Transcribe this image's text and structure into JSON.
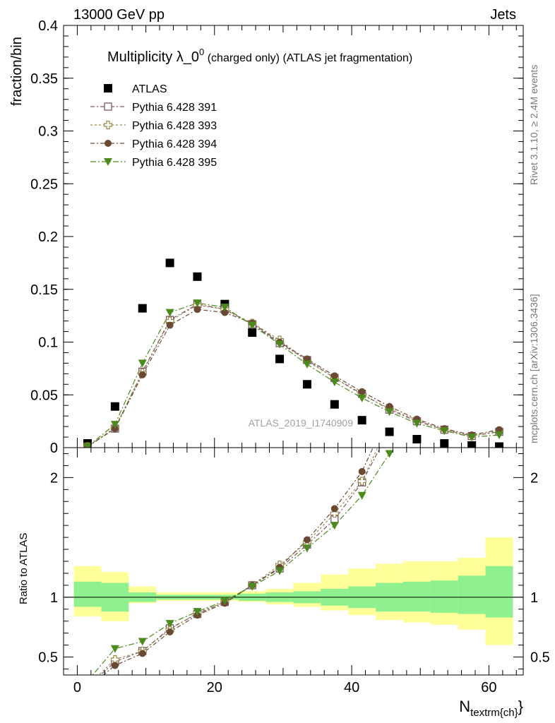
{
  "header": {
    "left": "13000 GeV pp",
    "right": "Jets"
  },
  "side_labels": {
    "rivet": "Rivet 3.1.10, ≥ 2.4M events",
    "mcplots": "mcplots.cern.ch [arXiv:1306.3436]"
  },
  "analysis_id": "ATLAS_2019_I1740909",
  "chart_data": [
    {
      "type": "line",
      "title": "Multiplicity λ_0",
      "title_sup": "0",
      "title_suffix": " (charged only) (ATLAS jet fragmentation)",
      "ylabel": "fraction/bin",
      "ylim": [
        0,
        0.4
      ],
      "yticks": [
        0,
        0.05,
        0.1,
        0.15,
        0.2,
        0.25,
        0.3,
        0.35,
        0.4
      ],
      "ytick_labels": [
        "0",
        "0.05",
        "0.1",
        "0.15",
        "0.2",
        "0.25",
        "0.3",
        "0.35",
        "0.4"
      ],
      "xlim": [
        -2,
        65
      ],
      "x": [
        1.5,
        5.5,
        9.5,
        13.5,
        17.5,
        21.5,
        25.5,
        29.5,
        33.5,
        37.5,
        41.5,
        45.5,
        49.5,
        53.5,
        57.5,
        61.5
      ],
      "series": [
        {
          "name": "ATLAS",
          "marker": "square-filled",
          "color": "#000000",
          "values": [
            0.004,
            0.039,
            0.132,
            0.175,
            0.162,
            0.136,
            0.109,
            0.084,
            0.06,
            0.041,
            0.026,
            0.015,
            0.008,
            0.004,
            0.002,
            0.001
          ]
        },
        {
          "name": "Pythia 6.428 391",
          "marker": "square-open",
          "color": "#7a5468",
          "dash": "6,3,2,3",
          "values": [
            0.001,
            0.018,
            0.072,
            0.121,
            0.136,
            0.131,
            0.117,
            0.099,
            0.083,
            0.066,
            0.051,
            0.036,
            0.025,
            0.017,
            0.011,
            0.015
          ]
        },
        {
          "name": "Pythia 6.428 393",
          "marker": "cross-open",
          "color": "#9a8a4a",
          "dash": "3,3",
          "values": [
            0.001,
            0.019,
            0.071,
            0.12,
            0.135,
            0.131,
            0.118,
            0.102,
            0.082,
            0.066,
            0.05,
            0.037,
            0.026,
            0.017,
            0.011,
            0.016
          ]
        },
        {
          "name": "Pythia 6.428 394",
          "marker": "circle-filled",
          "color": "#6b4a34",
          "dash": "6,3,2,3",
          "values": [
            0.001,
            0.018,
            0.069,
            0.116,
            0.131,
            0.128,
            0.118,
            0.1,
            0.084,
            0.068,
            0.053,
            0.039,
            0.027,
            0.018,
            0.012,
            0.017
          ]
        },
        {
          "name": "Pythia 6.428 395",
          "marker": "triangle-down-filled",
          "color": "#4c8a1e",
          "dash": "8,3,2,3",
          "values": [
            0.001,
            0.022,
            0.08,
            0.128,
            0.137,
            0.133,
            0.116,
            0.098,
            0.079,
            0.062,
            0.047,
            0.034,
            0.023,
            0.016,
            0.01,
            0.012
          ]
        }
      ]
    },
    {
      "type": "line",
      "ylabel": "Ratio to ATLAS",
      "xlabel": "N",
      "xlabel_sub": "textrm{ch}",
      "xlabel_end": "}",
      "ylim": [
        0.35,
        2.25
      ],
      "yticks": [
        0.5,
        1,
        2
      ],
      "ytick_labels": [
        "0.5",
        "1",
        "2"
      ],
      "xlim": [
        -2,
        65
      ],
      "xticks": [
        0,
        20,
        40,
        60
      ],
      "xtick_labels": [
        "0",
        "20",
        "40",
        "60"
      ],
      "x_edges": [
        -0.5,
        3.5,
        7.5,
        11.5,
        15.5,
        19.5,
        23.5,
        27.5,
        31.5,
        35.5,
        39.5,
        43.5,
        47.5,
        51.5,
        55.5,
        59.5,
        63.5
      ],
      "band_inner": {
        "color": "#8ff08f",
        "lo": [
          0.92,
          0.88,
          0.96,
          0.98,
          0.98,
          0.98,
          0.97,
          0.96,
          0.95,
          0.93,
          0.91,
          0.88,
          0.88,
          0.87,
          0.86,
          0.83
        ],
        "hi": [
          1.13,
          1.12,
          1.04,
          1.02,
          1.02,
          1.02,
          1.03,
          1.04,
          1.05,
          1.07,
          1.09,
          1.12,
          1.13,
          1.14,
          1.18,
          1.26
        ]
      },
      "band_outer": {
        "color": "#ffff99",
        "lo": [
          0.84,
          0.8,
          0.95,
          0.97,
          0.97,
          0.97,
          0.96,
          0.94,
          0.92,
          0.89,
          0.85,
          0.81,
          0.79,
          0.77,
          0.73,
          0.6
        ]
      },
      "band_outer_hi": [
        1.26,
        1.21,
        1.09,
        1.04,
        1.04,
        1.04,
        1.05,
        1.07,
        1.12,
        1.19,
        1.24,
        1.28,
        1.3,
        1.3,
        1.33,
        1.5
      ],
      "x": [
        1.5,
        5.5,
        9.5,
        13.5,
        17.5,
        21.5,
        25.5,
        29.5,
        33.5,
        37.5,
        41.5,
        45.5
      ],
      "series": [
        {
          "name": "Pythia 6.428 391",
          "values": [
            0.25,
            0.46,
            0.55,
            0.74,
            0.86,
            0.96,
            1.1,
            1.24,
            1.44,
            1.65,
            1.96,
            2.4
          ]
        },
        {
          "name": "Pythia 6.428 393",
          "values": [
            0.26,
            0.48,
            0.55,
            0.73,
            0.87,
            0.96,
            1.1,
            1.27,
            1.46,
            1.7,
            1.97,
            2.46
          ]
        },
        {
          "name": "Pythia 6.428 394",
          "values": [
            0.24,
            0.43,
            0.53,
            0.71,
            0.85,
            0.95,
            1.1,
            1.25,
            1.48,
            1.74,
            2.05,
            2.55
          ]
        },
        {
          "name": "Pythia 6.428 395",
          "values": [
            0.3,
            0.57,
            0.63,
            0.78,
            0.88,
            0.97,
            1.09,
            1.22,
            1.41,
            1.6,
            1.85,
            2.2
          ]
        }
      ]
    }
  ]
}
